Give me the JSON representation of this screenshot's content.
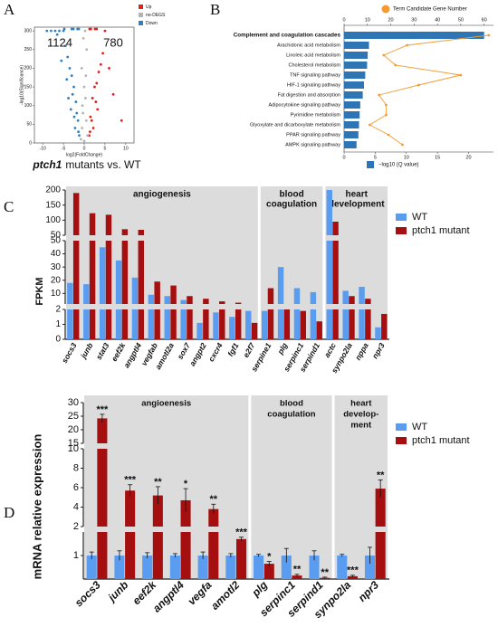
{
  "chart_data": [
    {
      "type": "scatter",
      "label": "A",
      "ylabel": "-log10(Significance)",
      "xlabel": "log2(FoldChange)",
      "caption_italic": "ptch1",
      "caption": "mutants vs. WT",
      "annotations": [
        {
          "text": "1124",
          "color": "#2f7fc1"
        },
        {
          "text": "780",
          "color": "#e0201b"
        }
      ],
      "xlim": [
        -12,
        12
      ],
      "xticks": [
        -10,
        -5,
        0,
        5,
        10
      ],
      "ylim": [
        0,
        310
      ],
      "yticks": [
        0,
        50,
        100,
        150,
        200,
        250,
        300
      ],
      "series": [
        {
          "name": "Up",
          "color": "#e0201b",
          "x": [
            1.2,
            1.5,
            2,
            2.5,
            3,
            3.5,
            4,
            4.5,
            5,
            6,
            7,
            9,
            2.2,
            3.2,
            1.8,
            2.8,
            1.4,
            1.3,
            1.6,
            2.6,
            3
          ],
          "values": [
            20,
            70,
            120,
            150,
            160,
            190,
            210,
            240,
            300,
            200,
            130,
            60,
            40,
            90,
            60,
            110,
            30,
            305,
            305,
            305,
            305
          ]
        },
        {
          "name": "no-DEGS",
          "color": "#b3b3b3",
          "x": [
            -0.8,
            -0.5,
            -0.3,
            0,
            0.3,
            0.5,
            0.8,
            -0.6,
            0.6,
            -0.2,
            0.2,
            0,
            -0.4,
            0.4
          ],
          "values": [
            10,
            40,
            80,
            150,
            120,
            60,
            20,
            200,
            250,
            280,
            300,
            5,
            100,
            180
          ]
        },
        {
          "name": "Down",
          "color": "#2f7fc1",
          "x": [
            -1.2,
            -1.5,
            -2,
            -2.5,
            -3,
            -3.5,
            -4,
            -4.5,
            -5,
            -6,
            -7,
            -8,
            -2.2,
            -3.2,
            -1.8,
            -2.8,
            -4.2,
            -5.5,
            -1.4,
            -6.5,
            -3.8,
            -2.4,
            -9,
            -1.3,
            -1.6,
            -2.6,
            -3,
            -4.8
          ],
          "values": [
            20,
            60,
            110,
            150,
            180,
            200,
            230,
            260,
            300,
            300,
            300,
            300,
            40,
            90,
            80,
            130,
            170,
            220,
            30,
            290,
            120,
            70,
            300,
            305,
            305,
            305,
            305,
            305
          ]
        }
      ]
    },
    {
      "type": "bar_line",
      "label": "B",
      "categories": [
        "Complement and coagulation cascades",
        "Arachidonic acid metabolism",
        "Linoleic acid metabolism",
        "Cholesterol metabolism",
        "TNF signaling pathway",
        "HIF-1 signaling pathway",
        "Fat digestion and absorption",
        "Adipocytokine signaling pathway",
        "Pyrimidine metabolism",
        "Glyoxylate and dicarboxylate metabolism",
        "PPAR signaling pathway",
        "AMPK signaling pathway"
      ],
      "xlim": [
        0,
        24
      ],
      "xticks": [
        0,
        5,
        10,
        15,
        20
      ],
      "x2lim": [
        0,
        64
      ],
      "x2ticks": [
        0,
        10,
        20,
        30,
        40,
        50,
        60
      ],
      "series": [
        {
          "name": "−log10 (Q value)",
          "color": "#2e75b6",
          "axis": "x",
          "values": [
            22.5,
            4,
            3.8,
            3.7,
            3.4,
            3.2,
            3,
            2.6,
            2.5,
            2.4,
            2.3,
            2
          ]
        },
        {
          "name": "Term Candidate Gene Number",
          "color": "#f39c32",
          "axis": "x2",
          "values": [
            62,
            27,
            17,
            22,
            50,
            32,
            15,
            18,
            18,
            11,
            19,
            25
          ]
        }
      ]
    },
    {
      "type": "broken_bar",
      "label": "C",
      "ylabel": "FPKM",
      "groups": [
        {
          "name_lines": [
            "angiogenesis"
          ],
          "categories": [
            "socs3",
            "junb",
            "stat3",
            "eef2k",
            "angptl4",
            "vegfab",
            "amotl2a",
            "sox7",
            "angpt2",
            "cxcr4",
            "fgf1",
            "e2f7"
          ]
        },
        {
          "name_lines": [
            "blood",
            "coagulation"
          ],
          "categories": [
            "serpine1",
            "plg",
            "serpinc1",
            "serpind1"
          ]
        },
        {
          "name_lines": [
            "heart",
            "development"
          ],
          "categories": [
            "actc",
            "synpo2la",
            "nppa",
            "npr3"
          ]
        }
      ],
      "y_segments": [
        {
          "ylim": [
            0,
            2
          ],
          "yticks": [
            0,
            1,
            2
          ]
        },
        {
          "ylim": [
            2,
            50
          ],
          "yticks": [
            10,
            20,
            30,
            40,
            50
          ]
        },
        {
          "ylim": [
            50,
            200
          ],
          "yticks": [
            50,
            100,
            150,
            200
          ]
        }
      ],
      "series": [
        {
          "name": "WT",
          "color": "#5a9cf0",
          "values": [
            18,
            17,
            45,
            35,
            22,
            9,
            8,
            5,
            1.1,
            1.8,
            1.5,
            1.9,
            1.9,
            30,
            14,
            11,
            200,
            12,
            15,
            0.8
          ]
        },
        {
          "name": "ptch1 mutant",
          "color": "#a50f0f",
          "values": [
            190,
            123,
            118,
            70,
            68,
            19,
            16,
            8,
            6,
            4,
            3,
            1.1,
            14,
            2,
            1.9,
            1.2,
            95,
            8,
            6,
            1.7
          ]
        }
      ]
    },
    {
      "type": "broken_bar",
      "label": "D",
      "ylabel": "mRNA relative expression",
      "groups": [
        {
          "name_lines": [
            "angioenesis"
          ],
          "categories": [
            "socs3",
            "junb",
            "eef2k",
            "angptl4",
            "vegfa",
            "amotl2"
          ]
        },
        {
          "name_lines": [
            "blood",
            "coagulation"
          ],
          "categories": [
            "plg",
            "serpinc1",
            "serpind1"
          ]
        },
        {
          "name_lines": [
            "heart",
            "develop-",
            "ment"
          ],
          "categories": [
            "synpo2la",
            "npr3"
          ]
        }
      ],
      "y_segments": [
        {
          "ylim": [
            0,
            2
          ],
          "yticks": [
            1
          ]
        },
        {
          "ylim": [
            2,
            10
          ],
          "yticks": [
            2,
            4,
            6,
            8,
            10
          ]
        },
        {
          "ylim": [
            15,
            30
          ],
          "yticks": [
            15,
            20,
            25,
            30
          ]
        }
      ],
      "series": [
        {
          "name": "WT",
          "color": "#5a9cf0",
          "values": [
            1,
            1,
            1,
            1,
            1,
            1,
            1,
            1,
            1,
            1,
            1
          ],
          "errors": [
            0.15,
            0.2,
            0.12,
            0.08,
            0.15,
            0.08,
            0.05,
            0.3,
            0.2,
            0.05,
            0.35
          ]
        },
        {
          "name": "ptch1 mutant",
          "color": "#a50f0f",
          "values": [
            24.2,
            5.7,
            5.2,
            4.7,
            3.8,
            1.7,
            0.65,
            0.15,
            0.05,
            0.12,
            5.9
          ],
          "errors": [
            1.5,
            0.6,
            0.9,
            1.2,
            0.5,
            0.08,
            0.1,
            0.05,
            0.03,
            0.04,
            0.9
          ],
          "significance": [
            "***",
            "***",
            "**",
            "*",
            "**",
            "***",
            "*",
            "**",
            "**",
            "***",
            "**"
          ]
        }
      ]
    }
  ]
}
